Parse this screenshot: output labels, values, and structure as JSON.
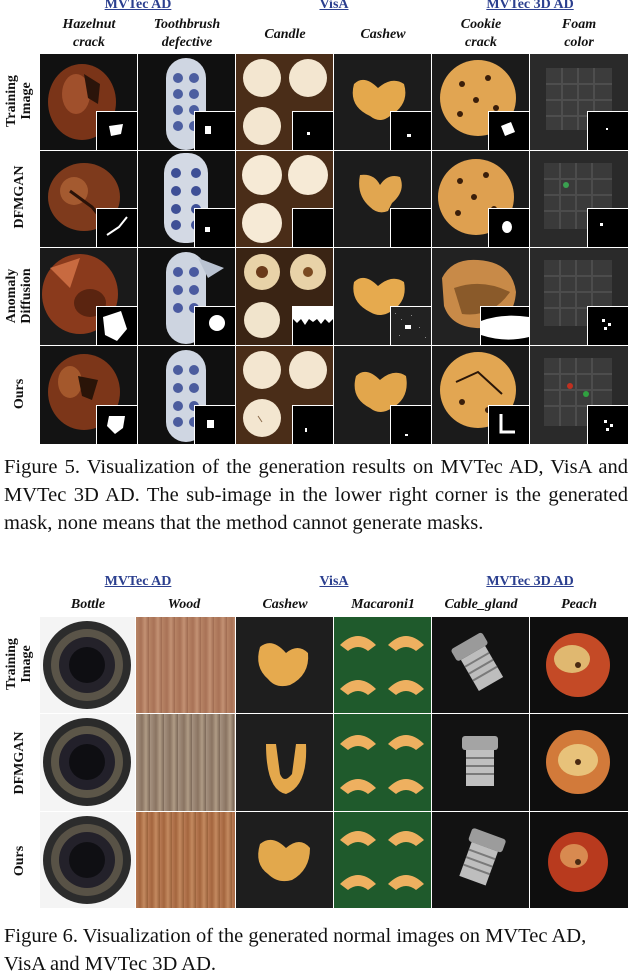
{
  "figure5": {
    "groups": [
      "MVTec AD",
      "VisA",
      "MVTec 3D AD"
    ],
    "categories": [
      [
        "Hazelnut",
        "crack"
      ],
      [
        "Toothbrush",
        "defective"
      ],
      [
        "Candle"
      ],
      [
        "Cashew"
      ],
      [
        "Cookie",
        "crack"
      ],
      [
        "Foam",
        "color"
      ]
    ],
    "rows": [
      [
        "Training",
        "Image"
      ],
      [
        "DFMGAN"
      ],
      [
        "Anomaly",
        "Diffusion"
      ],
      [
        "Ours"
      ]
    ],
    "caption": "Figure 5.  Visualization of the generation results on MVTec AD, VisA and MVTec 3D AD. The sub-image in the lower right corner is the generated mask, none means that the method cannot generate masks."
  },
  "figure6": {
    "groups": [
      "MVTec AD",
      "VisA",
      "MVTec 3D AD"
    ],
    "categories": [
      "Bottle",
      "Wood",
      "Cashew",
      "Macaroni1",
      "Cable_gland",
      "Peach"
    ],
    "rows": [
      [
        "Training",
        "Image"
      ],
      [
        "DFMGAN"
      ],
      [
        "Ours"
      ]
    ],
    "caption": "Figure 6. Visualization of the generated normal images on MVTec AD, VisA and MVTec 3D AD."
  }
}
